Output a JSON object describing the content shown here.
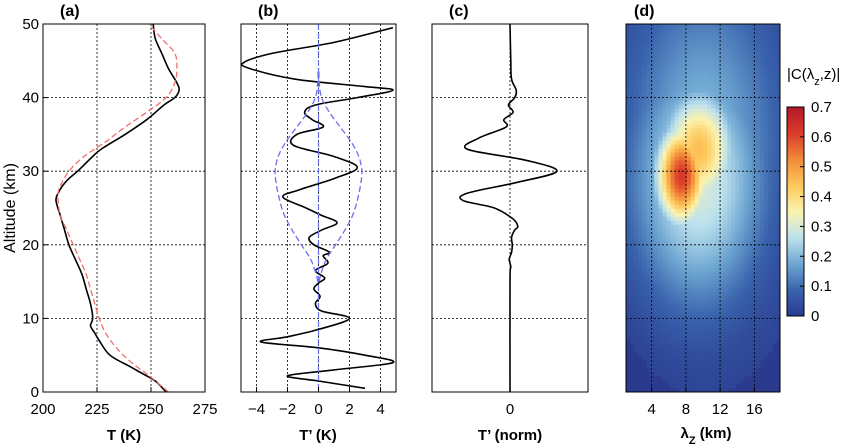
{
  "chart_data": [
    {
      "id": "a",
      "type": "line",
      "panel_label": "(a)",
      "title": "",
      "xlabel": "T (K)",
      "ylabel": "Altitude (km)",
      "xlim": [
        200,
        275
      ],
      "ylim": [
        0,
        50
      ],
      "xticks": [
        200,
        225,
        250,
        275
      ],
      "yticks": [
        0,
        10,
        20,
        30,
        40,
        50
      ],
      "grid": true,
      "series": [
        {
          "style": "solid",
          "color": "#000000",
          "y": [
            0,
            1.5,
            2.5,
            3.5,
            5,
            7,
            8,
            9,
            10,
            12,
            14,
            16,
            18,
            20,
            22,
            24,
            26,
            27,
            28,
            29,
            30,
            32,
            33,
            35,
            37,
            39,
            40,
            41,
            42,
            44,
            46,
            48,
            50
          ],
          "x": [
            257,
            252,
            246,
            240,
            231,
            226,
            224,
            222,
            223,
            222,
            220,
            218,
            215,
            212,
            210,
            208,
            206,
            207,
            209,
            212,
            216,
            223,
            227,
            238,
            248,
            256,
            261,
            263,
            262,
            258,
            255,
            252,
            251
          ]
        },
        {
          "style": "dashed",
          "color": "#ef6f6f",
          "y": [
            0,
            2,
            4,
            6,
            8,
            10,
            12,
            14,
            16,
            18,
            20,
            22,
            24,
            26,
            27,
            28,
            30,
            32,
            34,
            36,
            38,
            40,
            42,
            44,
            46,
            48,
            50
          ],
          "x": [
            258,
            250,
            241,
            234,
            229,
            226,
            224,
            222,
            220,
            217,
            214,
            211,
            208,
            207,
            207,
            208,
            212,
            219,
            229,
            238,
            248,
            257,
            261,
            262,
            261,
            255,
            249
          ]
        }
      ]
    },
    {
      "id": "b",
      "type": "line",
      "panel_label": "(b)",
      "title": "",
      "xlabel": "T’ (K)",
      "xlim": [
        -5,
        5
      ],
      "ylim": [
        0,
        50
      ],
      "xticks": [
        -4,
        -2,
        0,
        2,
        4
      ],
      "tick_labels": [
        "−4",
        "−2",
        "0",
        "2",
        "4"
      ],
      "grid": true,
      "series": [
        {
          "style": "solid",
          "color": "#000000",
          "y": [
            0.5,
            1.5,
            2.2,
            3,
            4,
            5,
            6,
            6.8,
            7.5,
            8.5,
            10,
            11,
            12,
            13,
            14,
            14.8,
            15.5,
            16.5,
            17.5,
            18.5,
            19,
            20,
            21,
            22,
            23,
            24,
            25,
            26.5,
            27.5,
            29,
            30.5,
            32,
            33.5,
            35,
            36,
            37,
            38,
            39,
            40,
            41,
            41.5,
            42.5,
            44,
            44.8,
            46,
            47.5,
            49.5
          ],
          "x": [
            3,
            0,
            -2,
            1,
            4.8,
            3,
            0,
            -3.7,
            -2,
            0,
            2,
            0.2,
            -0.2,
            0.1,
            -0.3,
            0,
            0.4,
            -0.2,
            0.6,
            0.3,
            0.7,
            -0.3,
            -0.6,
            0.2,
            1.2,
            0.2,
            -0.8,
            -2.3,
            -1.2,
            1,
            2.5,
            1,
            -1.6,
            -1.4,
            0.3,
            -0.4,
            -0.9,
            -0.2,
            2.5,
            4.8,
            3,
            -1.5,
            -4.5,
            -4.8,
            -3,
            1,
            4.8
          ]
        },
        {
          "style": "dashed",
          "color": "#6a6ff0",
          "y": [
            15,
            16,
            18,
            20,
            22,
            24,
            26,
            28,
            30,
            32,
            34,
            36,
            38,
            40,
            42,
            44
          ],
          "x": [
            0.05,
            0.15,
            0.5,
            1.1,
            1.7,
            2.2,
            2.5,
            2.7,
            2.8,
            2.6,
            2.1,
            1.4,
            0.7,
            0.2,
            0.05,
            0.02
          ]
        },
        {
          "style": "dashed",
          "color": "#6a6ff0",
          "y": [
            15,
            16,
            18,
            20,
            22,
            24,
            26,
            28,
            30,
            32,
            34,
            36,
            38,
            40,
            42,
            44
          ],
          "x": [
            -0.05,
            -0.15,
            -0.5,
            -1.1,
            -1.7,
            -2.2,
            -2.5,
            -2.7,
            -2.8,
            -2.6,
            -2.1,
            -1.4,
            -0.7,
            -0.2,
            -0.05,
            -0.02
          ]
        }
      ]
    },
    {
      "id": "c",
      "type": "line",
      "panel_label": "(c)",
      "title": "",
      "xlabel": "T’ (norm)",
      "xlim": [
        -1,
        1
      ],
      "ylim": [
        0,
        50
      ],
      "xticks": [
        0
      ],
      "grid": true,
      "series": [
        {
          "style": "solid",
          "color": "#000000",
          "y": [
            0,
            15,
            17,
            18,
            19,
            20,
            21,
            22,
            22.5,
            23.5,
            25,
            26,
            27,
            28.5,
            30,
            31.5,
            33,
            34.5,
            36,
            37,
            38,
            39,
            40,
            41,
            42.5,
            45,
            50
          ],
          "x": [
            0,
            0,
            0.01,
            -0.01,
            0.02,
            0.03,
            0.02,
            0.06,
            0.1,
            0.04,
            -0.2,
            -0.6,
            -0.55,
            0.1,
            0.6,
            0.2,
            -0.55,
            -0.4,
            -0.05,
            -0.08,
            0.04,
            -0.02,
            0.06,
            0.08,
            0.02,
            0.01,
            0
          ]
        }
      ]
    },
    {
      "id": "d",
      "type": "heatmap",
      "panel_label": "(d)",
      "title": "",
      "xlabel": "λz (km)",
      "xlabel_main": "λ",
      "xlabel_sub": "Z",
      "xlabel_rest": " (km)",
      "xlim": [
        1,
        19
      ],
      "ylim": [
        0,
        50
      ],
      "xticks": [
        4,
        8,
        12,
        16
      ],
      "grid": true,
      "colorbar": {
        "label_prefix": "|C(λ",
        "label_sub": "z",
        "label_suffix": ",z)|",
        "range": [
          0,
          0.7
        ],
        "ticks": [
          "0",
          "0.1",
          "0.2",
          "0.3",
          "0.4",
          "0.5",
          "0.6",
          "0.7"
        ],
        "colormap": [
          "#2a3b8f",
          "#3a64ad",
          "#6fa7d2",
          "#bde2ee",
          "#fbf3b0",
          "#fdc85a",
          "#f28a3a",
          "#dc3b2a",
          "#b2182b"
        ]
      },
      "blobs": [
        {
          "x": 7.5,
          "y": 29.5,
          "value": 0.62,
          "sx": 2.2,
          "sy": 5
        },
        {
          "x": 9.5,
          "y": 33,
          "value": 0.45,
          "sx": 3.2,
          "sy": 6
        },
        {
          "x": 9.5,
          "y": 29,
          "value": 0.3,
          "sx": 5.5,
          "sy": 12
        },
        {
          "x": 10,
          "y": 34,
          "value": 0.2,
          "sx": 6.5,
          "sy": 16
        }
      ]
    }
  ]
}
